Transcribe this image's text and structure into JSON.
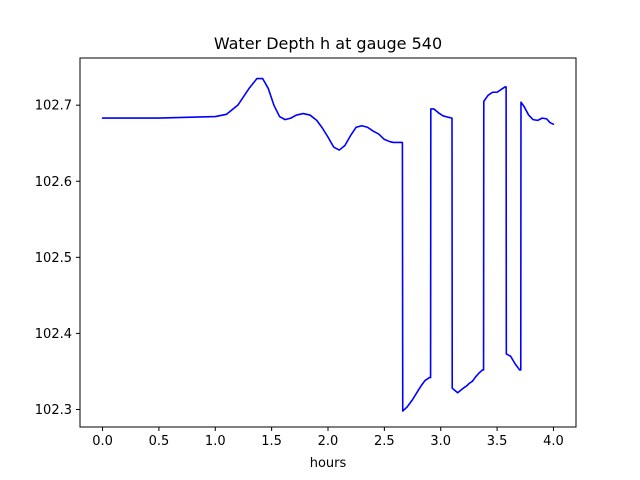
{
  "chart_data": {
    "type": "line",
    "title": "Water Depth h at gauge 540",
    "xlabel": "hours",
    "ylabel": "",
    "xlim": [
      -0.2,
      4.2
    ],
    "ylim": [
      102.277,
      102.762
    ],
    "xticks": [
      0.0,
      0.5,
      1.0,
      1.5,
      2.0,
      2.5,
      3.0,
      3.5,
      4.0
    ],
    "xtick_labels": [
      "0.0",
      "0.5",
      "1.0",
      "1.5",
      "2.0",
      "2.5",
      "3.0",
      "3.5",
      "4.0"
    ],
    "yticks": [
      102.3,
      102.4,
      102.5,
      102.6,
      102.7
    ],
    "ytick_labels": [
      "102.3",
      "102.4",
      "102.5",
      "102.6",
      "102.7"
    ],
    "grid": false,
    "legend": "none",
    "series": [
      {
        "color": "#0000ff",
        "x": [
          0.0,
          0.5,
          1.0,
          1.1,
          1.2,
          1.3,
          1.37,
          1.42,
          1.47,
          1.52,
          1.57,
          1.62,
          1.67,
          1.72,
          1.78,
          1.84,
          1.9,
          1.95,
          2.0,
          2.05,
          2.1,
          2.15,
          2.2,
          2.25,
          2.3,
          2.35,
          2.4,
          2.45,
          2.5,
          2.55,
          2.58,
          2.6,
          2.66,
          2.663,
          2.7,
          2.75,
          2.8,
          2.83,
          2.86,
          2.9,
          2.91,
          2.912,
          2.94,
          2.98,
          3.02,
          3.07,
          3.1,
          3.102,
          3.15,
          3.2,
          3.23,
          3.25,
          3.28,
          3.31,
          3.34,
          3.37,
          3.38,
          3.382,
          3.42,
          3.46,
          3.5,
          3.53,
          3.57,
          3.58,
          3.582,
          3.62,
          3.66,
          3.7,
          3.71,
          3.712,
          3.74,
          3.78,
          3.82,
          3.86,
          3.9,
          3.94,
          3.97,
          4.0
        ],
        "y": [
          102.683,
          102.683,
          102.685,
          102.688,
          102.7,
          102.722,
          102.735,
          102.735,
          102.722,
          102.7,
          102.685,
          102.681,
          102.683,
          102.687,
          102.689,
          102.687,
          102.68,
          102.67,
          102.658,
          102.645,
          102.641,
          102.647,
          102.66,
          102.671,
          102.673,
          102.671,
          102.666,
          102.662,
          102.655,
          102.652,
          102.651,
          102.651,
          102.651,
          102.298,
          102.303,
          102.313,
          102.325,
          102.332,
          102.338,
          102.342,
          102.342,
          102.695,
          102.695,
          102.69,
          102.686,
          102.684,
          102.683,
          102.328,
          102.322,
          102.328,
          102.331,
          102.334,
          102.337,
          102.343,
          102.348,
          102.352,
          102.352,
          102.705,
          102.713,
          102.717,
          102.717,
          102.72,
          102.724,
          102.724,
          102.373,
          102.37,
          102.36,
          102.352,
          102.352,
          102.704,
          102.698,
          102.687,
          102.681,
          102.68,
          102.683,
          102.682,
          102.677,
          102.675
        ]
      }
    ]
  }
}
